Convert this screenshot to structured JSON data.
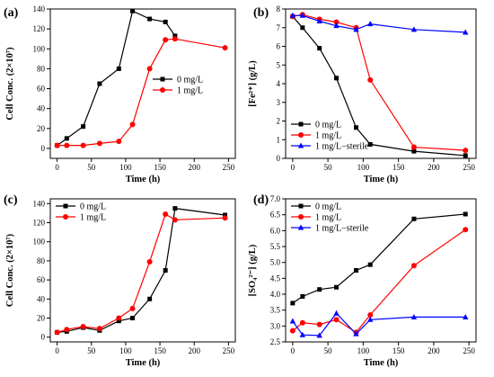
{
  "figure": {
    "background": "#ffffff"
  },
  "chart_data": [
    {
      "panel": "(a)",
      "type": "line",
      "xlabel": "Time (h)",
      "ylabel": "Cell Conc. (2×10⁷)",
      "xlim": [
        -10,
        260
      ],
      "ylim": [
        -10,
        140
      ],
      "xticks": [
        "0",
        "50",
        "100",
        "150",
        "200",
        "250"
      ],
      "yticks": [
        "0",
        "20",
        "40",
        "60",
        "80",
        "100",
        "120",
        "140"
      ],
      "legend_position": "center-right",
      "series": [
        {
          "name": "0 mg/L",
          "color": "#000000",
          "marker": "square",
          "x": [
            0,
            14,
            38,
            62,
            90,
            110,
            135,
            158,
            172
          ],
          "y": [
            3,
            10,
            22,
            65,
            80,
            138,
            130,
            127,
            113
          ]
        },
        {
          "name": "1 mg/L",
          "color": "#ff0000",
          "marker": "circle",
          "x": [
            0,
            14,
            38,
            62,
            90,
            110,
            135,
            158,
            172,
            245
          ],
          "y": [
            3,
            3,
            3,
            5,
            7,
            24,
            80,
            109,
            110,
            101
          ]
        }
      ]
    },
    {
      "panel": "(b)",
      "type": "line",
      "xlabel": "Time (h)",
      "ylabel": "[Fe²⁺] (g/L)",
      "xlim": [
        -10,
        260
      ],
      "ylim": [
        0,
        8
      ],
      "xticks": [
        "0",
        "50",
        "100",
        "150",
        "200",
        "250"
      ],
      "yticks": [
        "0",
        "1",
        "2",
        "3",
        "4",
        "5",
        "6",
        "7",
        "8"
      ],
      "legend_position": "bottom-left",
      "series": [
        {
          "name": "0 mg/L",
          "color": "#000000",
          "marker": "square",
          "x": [
            0,
            14,
            38,
            62,
            90,
            110,
            172,
            245
          ],
          "y": [
            7.6,
            7.0,
            5.9,
            4.3,
            1.65,
            0.75,
            0.38,
            0.15
          ]
        },
        {
          "name": "1 mg/L",
          "color": "#ff0000",
          "marker": "circle",
          "x": [
            0,
            14,
            38,
            62,
            90,
            110,
            172,
            245
          ],
          "y": [
            7.6,
            7.7,
            7.45,
            7.3,
            7.0,
            4.2,
            0.6,
            0.43
          ]
        },
        {
          "name": "1 mg/L−sterile",
          "color": "#0000ff",
          "marker": "triangle",
          "x": [
            0,
            14,
            38,
            62,
            90,
            110,
            172,
            245
          ],
          "y": [
            7.65,
            7.65,
            7.35,
            7.1,
            6.9,
            7.2,
            6.9,
            6.75
          ]
        }
      ]
    },
    {
      "panel": "(c)",
      "type": "line",
      "xlabel": "Time (h)",
      "ylabel": "Cell Conc. (2×10⁷)",
      "xlim": [
        -10,
        260
      ],
      "ylim": [
        -5,
        145
      ],
      "xticks": [
        "0",
        "50",
        "100",
        "150",
        "200",
        "250"
      ],
      "yticks": [
        "0",
        "20",
        "40",
        "60",
        "80",
        "100",
        "120",
        "140"
      ],
      "legend_position": "top-left",
      "series": [
        {
          "name": "0 mg/L",
          "color": "#000000",
          "marker": "square",
          "x": [
            0,
            14,
            38,
            62,
            90,
            110,
            135,
            158,
            172,
            245
          ],
          "y": [
            5,
            6,
            10,
            7,
            17,
            20,
            40,
            70,
            135,
            128
          ]
        },
        {
          "name": "1 mg/L",
          "color": "#ff0000",
          "marker": "circle",
          "x": [
            0,
            14,
            38,
            62,
            90,
            110,
            135,
            158,
            172,
            245
          ],
          "y": [
            5,
            8,
            11,
            9,
            20,
            30,
            79,
            129,
            123,
            125
          ]
        }
      ]
    },
    {
      "panel": "(d)",
      "type": "line",
      "xlabel": "Time (h)",
      "ylabel": "[SO₄²⁻] (g/L)",
      "xlim": [
        -10,
        260
      ],
      "ylim": [
        2.5,
        7.0
      ],
      "xticks": [
        "0",
        "50",
        "100",
        "150",
        "200",
        "250"
      ],
      "yticks": [
        "2.5",
        "3.0",
        "3.5",
        "4.0",
        "4.5",
        "5.0",
        "5.5",
        "6.0",
        "6.5",
        "7.0"
      ],
      "legend_position": "top-left",
      "series": [
        {
          "name": "0 mg/L",
          "color": "#000000",
          "marker": "square",
          "x": [
            0,
            14,
            38,
            62,
            90,
            110,
            172,
            245
          ],
          "y": [
            3.72,
            3.93,
            4.15,
            4.22,
            4.75,
            4.93,
            6.37,
            6.52
          ]
        },
        {
          "name": "1 mg/L",
          "color": "#ff0000",
          "marker": "circle",
          "x": [
            0,
            14,
            38,
            62,
            90,
            110,
            172,
            245
          ],
          "y": [
            2.85,
            3.1,
            3.05,
            3.2,
            2.8,
            3.35,
            4.9,
            6.03
          ]
        },
        {
          "name": "1 mg/L−sterile",
          "color": "#0000ff",
          "marker": "triangle",
          "x": [
            0,
            14,
            38,
            62,
            90,
            110,
            172,
            245
          ],
          "y": [
            3.15,
            2.72,
            2.7,
            3.4,
            2.75,
            3.2,
            3.28,
            3.28
          ]
        }
      ]
    }
  ]
}
